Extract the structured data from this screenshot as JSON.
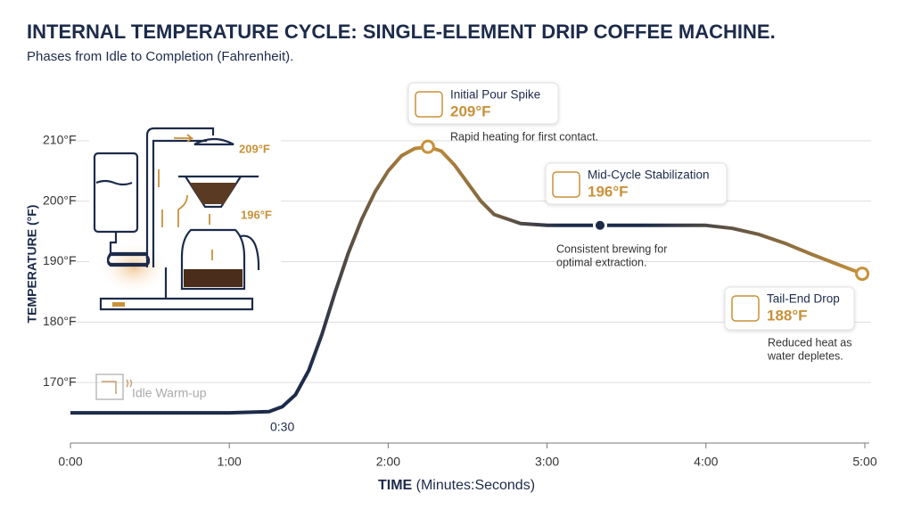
{
  "chart_data": {
    "type": "line",
    "title": "INTERNAL TEMPERATURE CYCLE: SINGLE-ELEMENT DRIP COFFEE MACHINE.",
    "subtitle": "Phases from Idle to Completion (Fahrenheit).",
    "x_label": "TIME",
    "x_label_unit": "(Minutes:Seconds)",
    "y_label": "TEMPERATURE (°F)",
    "xlim": [
      0,
      300
    ],
    "xticks": [
      {
        "value": 0,
        "label": "0:00"
      },
      {
        "value": 60,
        "label": "1:00"
      },
      {
        "value": 120,
        "label": "2:00"
      },
      {
        "value": 180,
        "label": "3:00"
      },
      {
        "value": 240,
        "label": "4:00"
      },
      {
        "value": 300,
        "label": "5:00"
      }
    ],
    "ylim": [
      160,
      220
    ],
    "yticks": [
      {
        "value": 170,
        "label": "170°F"
      },
      {
        "value": 180,
        "label": "180°F"
      },
      {
        "value": 190,
        "label": "190°F"
      },
      {
        "value": 200,
        "label": "200°F"
      },
      {
        "value": 210,
        "label": "210°F"
      }
    ],
    "grid": true,
    "x": [
      0,
      30,
      60,
      75,
      80,
      85,
      90,
      95,
      100,
      105,
      110,
      115,
      120,
      125,
      130,
      135,
      140,
      145,
      150,
      155,
      160,
      170,
      180,
      190,
      200,
      220,
      240,
      250,
      260,
      270,
      280,
      290,
      299
    ],
    "series": [
      {
        "colors": [
          "#1c2b4a",
          "#c8913a"
        ],
        "values": [
          165,
          165,
          165,
          165.2,
          166,
          168,
          172,
          178,
          185,
          191.5,
          197,
          201.5,
          205,
          207.5,
          208.7,
          209,
          208.3,
          206,
          203,
          200,
          197.8,
          196.3,
          196,
          196,
          196,
          196,
          196,
          195.5,
          194.5,
          193,
          191.2,
          189.5,
          188
        ]
      }
    ],
    "start_annotation": "0:30",
    "idle_label": "Idle Warm-up",
    "annotations": [
      {
        "x": 135,
        "title": "Initial Pour Spike",
        "label": "209°F",
        "text": [
          "Rapid heating for first contact."
        ]
      },
      {
        "x": 200,
        "title": "Mid-Cycle Stabilization",
        "label": "196°F",
        "text": [
          "Consistent brewing for",
          "optimal extraction."
        ]
      },
      {
        "x": 299,
        "title": "Tail-End Drop",
        "label": "188°F",
        "text": [
          "Reduced heat as",
          "water depletes."
        ]
      }
    ],
    "illustration": {
      "top_label": "209°F",
      "mid_label": "196°F"
    }
  }
}
